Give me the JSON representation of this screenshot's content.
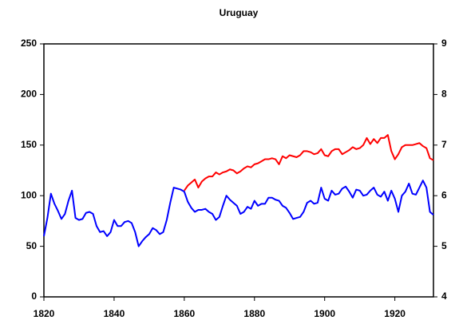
{
  "chart_data": {
    "type": "line",
    "title": "Uruguay",
    "x": [
      1820,
      1821,
      1822,
      1823,
      1824,
      1825,
      1826,
      1827,
      1828,
      1829,
      1830,
      1831,
      1832,
      1833,
      1834,
      1835,
      1836,
      1837,
      1838,
      1839,
      1840,
      1841,
      1842,
      1843,
      1844,
      1845,
      1846,
      1847,
      1848,
      1849,
      1850,
      1851,
      1852,
      1853,
      1854,
      1855,
      1856,
      1857,
      1858,
      1859,
      1860,
      1861,
      1862,
      1863,
      1864,
      1865,
      1866,
      1867,
      1868,
      1869,
      1870,
      1871,
      1872,
      1873,
      1874,
      1875,
      1876,
      1877,
      1878,
      1879,
      1880,
      1881,
      1882,
      1883,
      1884,
      1885,
      1886,
      1887,
      1888,
      1889,
      1890,
      1891,
      1892,
      1893,
      1894,
      1895,
      1896,
      1897,
      1898,
      1899,
      1900,
      1901,
      1902,
      1903,
      1904,
      1905,
      1906,
      1907,
      1908,
      1909,
      1910,
      1911,
      1912,
      1913,
      1914,
      1915,
      1916,
      1917,
      1918,
      1919,
      1920,
      1921,
      1922,
      1923,
      1924,
      1925,
      1926,
      1927,
      1928,
      1929,
      1930,
      1931
    ],
    "series": [
      {
        "color": "#0000ff",
        "axis": "y",
        "values": [
          60,
          78,
          102,
          92,
          85,
          77,
          82,
          95,
          105,
          78,
          76,
          77,
          83,
          84,
          82,
          70,
          64,
          65,
          60,
          64,
          76,
          70,
          70,
          74,
          75,
          73,
          64,
          50,
          55,
          59,
          62,
          68,
          66,
          62,
          64,
          76,
          93,
          108,
          107,
          106,
          104,
          94,
          88,
          84,
          86,
          86,
          87,
          84,
          82,
          76,
          79,
          90,
          100,
          96,
          93,
          90,
          82,
          84,
          89,
          87,
          95,
          90,
          92,
          92,
          98,
          98,
          96,
          95,
          90,
          88,
          83,
          77,
          78,
          79,
          84,
          93,
          95,
          92,
          93,
          108,
          97,
          95,
          105,
          101,
          102,
          107,
          109,
          104,
          98,
          106,
          105,
          100,
          101,
          105,
          108,
          101,
          99,
          104,
          95,
          105,
          97,
          84,
          100,
          104,
          112,
          102,
          101,
          108,
          115,
          108,
          84,
          81
        ]
      },
      {
        "color": "#ff0000",
        "axis": "y2",
        "values": [
          null,
          null,
          null,
          null,
          null,
          null,
          null,
          null,
          null,
          null,
          null,
          null,
          null,
          null,
          null,
          null,
          null,
          null,
          null,
          null,
          null,
          null,
          null,
          null,
          null,
          null,
          null,
          null,
          null,
          null,
          null,
          null,
          null,
          null,
          null,
          null,
          null,
          null,
          null,
          null,
          6.1,
          6.2,
          6.26,
          6.32,
          6.16,
          6.28,
          6.34,
          6.38,
          6.38,
          6.46,
          6.42,
          6.46,
          6.48,
          6.52,
          6.5,
          6.44,
          6.48,
          6.54,
          6.58,
          6.56,
          6.62,
          6.64,
          6.68,
          6.72,
          6.72,
          6.74,
          6.72,
          6.62,
          6.78,
          6.74,
          6.8,
          6.78,
          6.76,
          6.8,
          6.88,
          6.88,
          6.86,
          6.82,
          6.84,
          6.92,
          6.8,
          6.78,
          6.88,
          6.92,
          6.92,
          6.82,
          6.86,
          6.9,
          6.96,
          6.92,
          6.94,
          7.0,
          7.14,
          7.02,
          7.12,
          7.04,
          7.14,
          7.14,
          7.2,
          6.88,
          6.72,
          6.82,
          6.96,
          7.0,
          7.0,
          7.0,
          7.02,
          7.04,
          6.98,
          6.94,
          6.74,
          6.7
        ]
      }
    ],
    "xlim": [
      1820,
      1931
    ],
    "xticks": [
      1820,
      1840,
      1860,
      1880,
      1900,
      1920
    ],
    "ylim": [
      0,
      250
    ],
    "yticks": [
      0,
      50,
      100,
      150,
      200,
      250
    ],
    "y2lim": [
      4,
      9
    ],
    "y2ticks": [
      4,
      5,
      6,
      7,
      8,
      9
    ]
  }
}
